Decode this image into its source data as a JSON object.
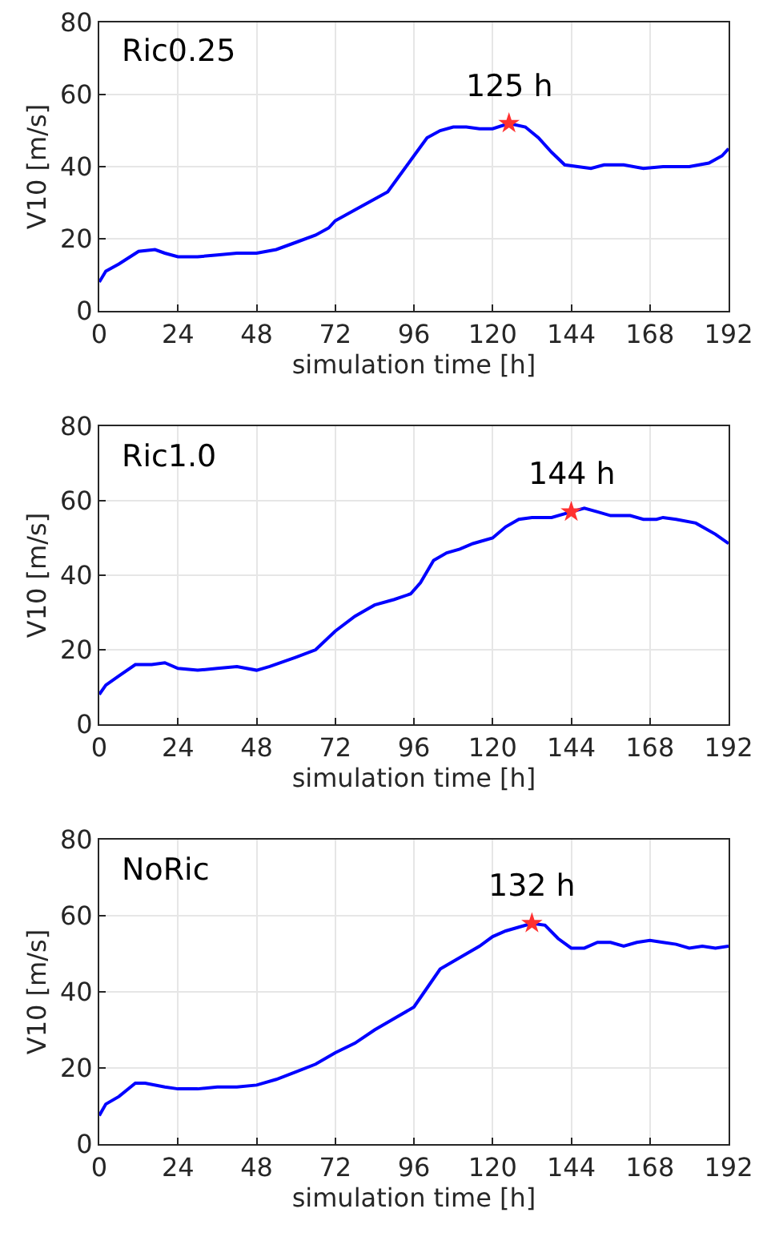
{
  "chart_data": [
    {
      "type": "line",
      "xlabel": "simulation time [h]",
      "ylabel": "V10 [m/s]",
      "xlim": [
        0,
        192
      ],
      "xticks": [
        0,
        24,
        48,
        72,
        96,
        120,
        144,
        168,
        192
      ],
      "ylim": [
        0,
        80
      ],
      "yticks": [
        0,
        20,
        40,
        60,
        80
      ],
      "grid": true,
      "annotations": [
        "Ric0.25",
        {
          "text": "125 h",
          "x": 125,
          "y": 52
        }
      ],
      "series": [
        {
          "color": "#0000ff",
          "x": [
            0,
            2,
            6,
            12,
            17,
            20,
            24,
            30,
            36,
            42,
            48,
            54,
            60,
            66,
            70,
            72,
            78,
            84,
            88,
            92,
            96,
            100,
            104,
            108,
            112,
            116,
            120,
            125,
            130,
            134,
            138,
            142,
            146,
            150,
            154,
            160,
            166,
            172,
            180,
            186,
            190,
            192
          ],
          "values": [
            8,
            11,
            13,
            16.5,
            17,
            16,
            15,
            15,
            15.5,
            16,
            16,
            17,
            19,
            21,
            23,
            25,
            28,
            31,
            33,
            38,
            43,
            48,
            50,
            51,
            51,
            50.5,
            50.5,
            52,
            51,
            48,
            44,
            40.5,
            40,
            39.5,
            40.5,
            40.5,
            39.5,
            40,
            40,
            41,
            43,
            45
          ]
        },
        {
          "type": "scatter",
          "marker": "star",
          "color": "#ff3030",
          "x": [
            125
          ],
          "values": [
            52
          ]
        }
      ]
    },
    {
      "type": "line",
      "xlabel": "simulation time [h]",
      "ylabel": "V10 [m/s]",
      "xlim": [
        0,
        192
      ],
      "xticks": [
        0,
        24,
        48,
        72,
        96,
        120,
        144,
        168,
        192
      ],
      "ylim": [
        0,
        80
      ],
      "yticks": [
        0,
        20,
        40,
        60,
        80
      ],
      "grid": true,
      "annotations": [
        "Ric1.0",
        {
          "text": "144 h",
          "x": 144,
          "y": 57
        }
      ],
      "series": [
        {
          "color": "#0000ff",
          "x": [
            0,
            2,
            6,
            11,
            16,
            20,
            24,
            30,
            36,
            42,
            48,
            52,
            60,
            66,
            72,
            78,
            84,
            90,
            95,
            98,
            102,
            106,
            110,
            114,
            120,
            124,
            128,
            132,
            138,
            144,
            148,
            152,
            156,
            162,
            166,
            170,
            172,
            176,
            182,
            188,
            192
          ],
          "values": [
            8,
            10.5,
            13,
            16,
            16,
            16.5,
            15,
            14.5,
            15,
            15.5,
            14.5,
            15.5,
            18,
            20,
            25,
            29,
            32,
            33.5,
            35,
            38,
            44,
            46,
            47,
            48.5,
            50,
            53,
            55,
            55.5,
            55.5,
            57,
            58,
            57,
            56,
            56,
            55,
            55,
            55.5,
            55,
            54,
            51,
            48.5
          ]
        },
        {
          "type": "scatter",
          "marker": "star",
          "color": "#ff3030",
          "x": [
            144
          ],
          "values": [
            57
          ]
        }
      ]
    },
    {
      "type": "line",
      "xlabel": "simulation time [h]",
      "ylabel": "V10 [m/s]",
      "xlim": [
        0,
        192
      ],
      "xticks": [
        0,
        24,
        48,
        72,
        96,
        120,
        144,
        168,
        192
      ],
      "ylim": [
        0,
        80
      ],
      "yticks": [
        0,
        20,
        40,
        60,
        80
      ],
      "grid": true,
      "annotations": [
        "NoRic",
        {
          "text": "132 h",
          "x": 132,
          "y": 58
        }
      ],
      "series": [
        {
          "color": "#0000ff",
          "x": [
            0,
            2,
            6,
            11,
            14,
            20,
            24,
            30,
            36,
            42,
            48,
            54,
            60,
            66,
            72,
            78,
            84,
            90,
            96,
            100,
            104,
            108,
            112,
            116,
            120,
            124,
            128,
            132,
            136,
            140,
            144,
            148,
            152,
            156,
            160,
            164,
            168,
            172,
            176,
            180,
            184,
            188,
            192
          ],
          "values": [
            7.5,
            10.5,
            12.5,
            16,
            16,
            15,
            14.5,
            14.5,
            15,
            15,
            15.5,
            17,
            19,
            21,
            24,
            26.5,
            30,
            33,
            36,
            41,
            46,
            48,
            50,
            52,
            54.5,
            56,
            57,
            58,
            57.5,
            54,
            51.5,
            51.5,
            53,
            53,
            52,
            53,
            53.5,
            53,
            52.5,
            51.5,
            52,
            51.5,
            52
          ]
        },
        {
          "type": "scatter",
          "marker": "star",
          "color": "#ff3030",
          "x": [
            132
          ],
          "values": [
            58
          ]
        }
      ]
    }
  ]
}
